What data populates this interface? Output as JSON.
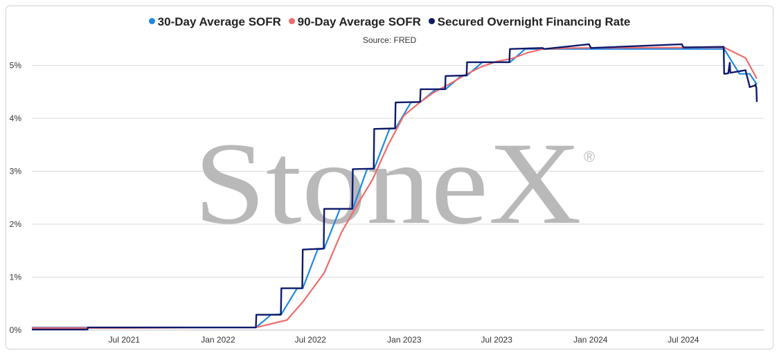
{
  "chart_data": {
    "type": "line",
    "title": "",
    "subtitle": "Source: FRED",
    "xlabel": "",
    "ylabel": "",
    "x_range": [
      "2021-01-01",
      "2024-11-22"
    ],
    "ylim": [
      0,
      5.5
    ],
    "y_ticks": [
      0,
      1,
      2,
      3,
      4,
      5
    ],
    "y_tick_labels": [
      "0%",
      "1%",
      "2%",
      "3%",
      "4%",
      "5%"
    ],
    "x_ticks": [
      "2021-07-01",
      "2022-01-01",
      "2022-07-01",
      "2023-01-01",
      "2023-07-01",
      "2024-01-01",
      "2024-07-01"
    ],
    "x_tick_labels": [
      "Jul 2021",
      "Jan 2022",
      "Jul 2022",
      "Jan 2023",
      "Jul 2023",
      "Jan 2024",
      "Jul 2024"
    ],
    "grid": "horizontal",
    "legend_position": "top",
    "series": [
      {
        "name": "30-Day Average SOFR",
        "color": "#1e88e5",
        "points": [
          [
            "2021-01-01",
            0.05
          ],
          [
            "2021-07-01",
            0.05
          ],
          [
            "2022-01-01",
            0.05
          ],
          [
            "2022-03-16",
            0.05
          ],
          [
            "2022-04-15",
            0.29
          ],
          [
            "2022-05-05",
            0.3
          ],
          [
            "2022-06-05",
            0.79
          ],
          [
            "2022-06-16",
            0.79
          ],
          [
            "2022-07-15",
            1.52
          ],
          [
            "2022-07-28",
            1.54
          ],
          [
            "2022-08-28",
            2.29
          ],
          [
            "2022-09-22",
            2.29
          ],
          [
            "2022-10-20",
            3.04
          ],
          [
            "2022-11-03",
            3.05
          ],
          [
            "2022-12-03",
            3.8
          ],
          [
            "2022-12-15",
            3.81
          ],
          [
            "2023-01-14",
            4.3
          ],
          [
            "2023-02-02",
            4.31
          ],
          [
            "2023-03-04",
            4.55
          ],
          [
            "2023-03-23",
            4.55
          ],
          [
            "2023-04-22",
            4.8
          ],
          [
            "2023-05-04",
            4.81
          ],
          [
            "2023-06-03",
            5.06
          ],
          [
            "2023-07-27",
            5.06
          ],
          [
            "2023-08-26",
            5.31
          ],
          [
            "2024-09-19",
            5.31
          ],
          [
            "2024-10-19",
            4.84
          ],
          [
            "2024-11-08",
            4.84
          ],
          [
            "2024-11-22",
            4.64
          ]
        ]
      },
      {
        "name": "90-Day Average SOFR",
        "color": "#ef6b6b",
        "points": [
          [
            "2021-01-01",
            0.04
          ],
          [
            "2021-07-01",
            0.04
          ],
          [
            "2022-01-01",
            0.05
          ],
          [
            "2022-03-16",
            0.05
          ],
          [
            "2022-05-16",
            0.19
          ],
          [
            "2022-06-16",
            0.53
          ],
          [
            "2022-07-28",
            1.08
          ],
          [
            "2022-08-31",
            1.85
          ],
          [
            "2022-09-30",
            2.35
          ],
          [
            "2022-10-31",
            2.85
          ],
          [
            "2022-11-30",
            3.49
          ],
          [
            "2022-12-31",
            4.05
          ],
          [
            "2023-01-31",
            4.3
          ],
          [
            "2023-02-28",
            4.49
          ],
          [
            "2023-03-31",
            4.65
          ],
          [
            "2023-04-30",
            4.82
          ],
          [
            "2023-05-31",
            4.97
          ],
          [
            "2023-06-30",
            5.07
          ],
          [
            "2023-07-31",
            5.13
          ],
          [
            "2023-08-31",
            5.24
          ],
          [
            "2023-09-30",
            5.31
          ],
          [
            "2023-11-30",
            5.33
          ],
          [
            "2024-09-19",
            5.34
          ],
          [
            "2024-10-31",
            5.14
          ],
          [
            "2024-11-22",
            4.75
          ]
        ]
      },
      {
        "name": "Secured Overnight Financing Rate",
        "color": "#0d1a6b",
        "points": [
          [
            "2021-01-01",
            0.01
          ],
          [
            "2021-04-20",
            0.01
          ],
          [
            "2021-04-21",
            0.05
          ],
          [
            "2022-03-16",
            0.05
          ],
          [
            "2022-03-17",
            0.29
          ],
          [
            "2022-05-04",
            0.29
          ],
          [
            "2022-05-05",
            0.79
          ],
          [
            "2022-06-15",
            0.79
          ],
          [
            "2022-06-16",
            1.52
          ],
          [
            "2022-07-27",
            1.54
          ],
          [
            "2022-07-28",
            2.29
          ],
          [
            "2022-09-21",
            2.29
          ],
          [
            "2022-09-22",
            3.04
          ],
          [
            "2022-11-02",
            3.05
          ],
          [
            "2022-11-03",
            3.8
          ],
          [
            "2022-12-14",
            3.81
          ],
          [
            "2022-12-15",
            4.3
          ],
          [
            "2023-02-01",
            4.31
          ],
          [
            "2023-02-02",
            4.55
          ],
          [
            "2023-03-22",
            4.55
          ],
          [
            "2023-03-23",
            4.8
          ],
          [
            "2023-05-03",
            4.81
          ],
          [
            "2023-05-04",
            5.06
          ],
          [
            "2023-07-26",
            5.06
          ],
          [
            "2023-07-27",
            5.31
          ],
          [
            "2023-09-29",
            5.33
          ],
          [
            "2023-10-02",
            5.31
          ],
          [
            "2023-12-29",
            5.4
          ],
          [
            "2024-01-02",
            5.33
          ],
          [
            "2024-06-28",
            5.4
          ],
          [
            "2024-07-01",
            5.34
          ],
          [
            "2024-09-18",
            5.35
          ],
          [
            "2024-09-19",
            4.84
          ],
          [
            "2024-09-27",
            4.85
          ],
          [
            "2024-09-30",
            5.05
          ],
          [
            "2024-10-01",
            4.86
          ],
          [
            "2024-10-31",
            4.91
          ],
          [
            "2024-11-01",
            4.86
          ],
          [
            "2024-11-07",
            4.64
          ],
          [
            "2024-11-08",
            4.59
          ],
          [
            "2024-11-18",
            4.62
          ],
          [
            "2024-11-19",
            4.64
          ],
          [
            "2024-11-21",
            4.58
          ],
          [
            "2024-11-22",
            4.31
          ]
        ]
      }
    ]
  },
  "watermark": {
    "text": "StoneX",
    "mark": "®"
  }
}
